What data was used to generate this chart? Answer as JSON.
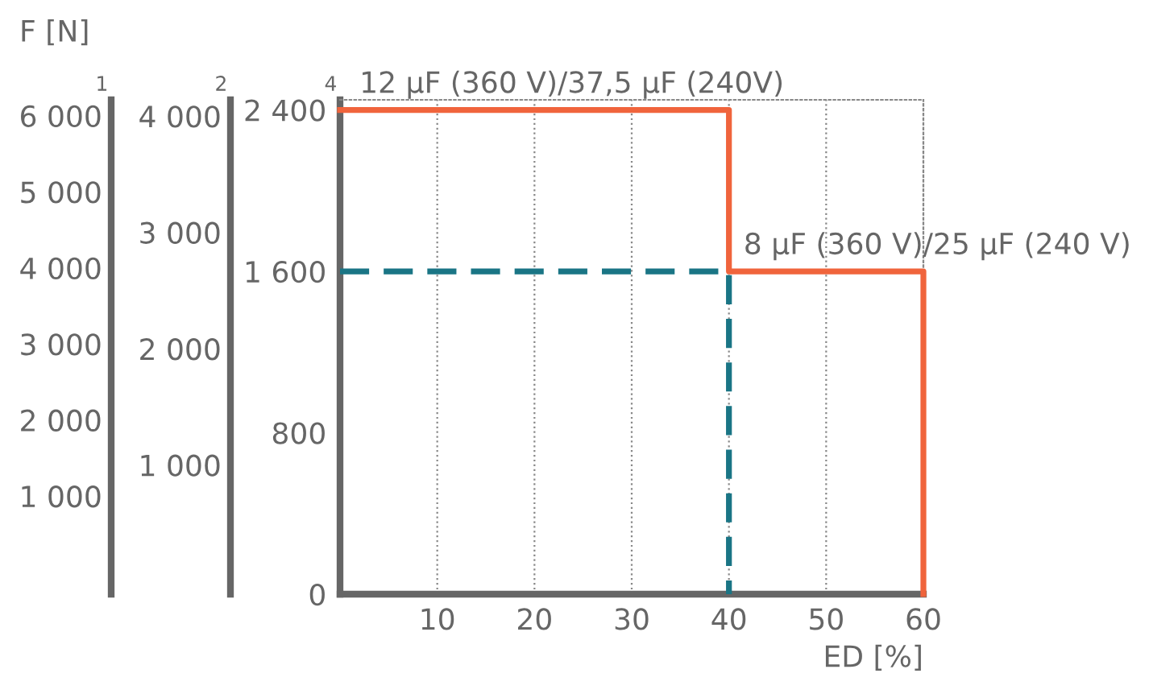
{
  "chart_data": {
    "type": "line",
    "title": "F [N]",
    "xlabel": "ED [%]",
    "ylabel": "4",
    "y2label": "2",
    "y3label": "1",
    "xlim": [
      0,
      60
    ],
    "xticks": [
      10,
      20,
      30,
      40,
      50,
      60
    ],
    "ylim": [
      0,
      2450
    ],
    "yticks": [
      {
        "value": 0,
        "label": "0"
      },
      {
        "value": 800,
        "label": "800"
      },
      {
        "value": 1600,
        "label": "1 600"
      },
      {
        "value": 2400,
        "label": "2 400"
      }
    ],
    "y2lim": [
      -110,
      4140
    ],
    "y2ticks": [
      {
        "value": 1000,
        "label": "1 000"
      },
      {
        "value": 2000,
        "label": "2 000"
      },
      {
        "value": 3000,
        "label": "3 000"
      },
      {
        "value": 4000,
        "label": "4 000"
      }
    ],
    "y3lim": [
      -290,
      6210
    ],
    "y3ticks": [
      {
        "value": 1000,
        "label": "1 000"
      },
      {
        "value": 2000,
        "label": "2 000"
      },
      {
        "value": 3000,
        "label": "3 000"
      },
      {
        "value": 4000,
        "label": "4 000"
      },
      {
        "value": 5000,
        "label": "5 000"
      },
      {
        "value": 6000,
        "label": "6 000"
      }
    ],
    "grid": "x",
    "series": [
      {
        "color": "#f0643c",
        "x": [
          0,
          40,
          40,
          60,
          60
        ],
        "values": [
          2400,
          2400,
          1600,
          1600,
          0
        ],
        "line_style": "solid"
      },
      {
        "color": "#1a7585",
        "x": [
          0,
          40,
          40
        ],
        "values": [
          1600,
          1600,
          0
        ],
        "line_style": "dashed"
      }
    ],
    "annotations": [
      {
        "text": "12 µF (360 V)/37,5 µF (240V)",
        "x": 2,
        "y": 2400
      },
      {
        "text": "8 µF (360 V)/25 µF (240 V)",
        "x": 41.5,
        "y": 1600
      }
    ]
  }
}
